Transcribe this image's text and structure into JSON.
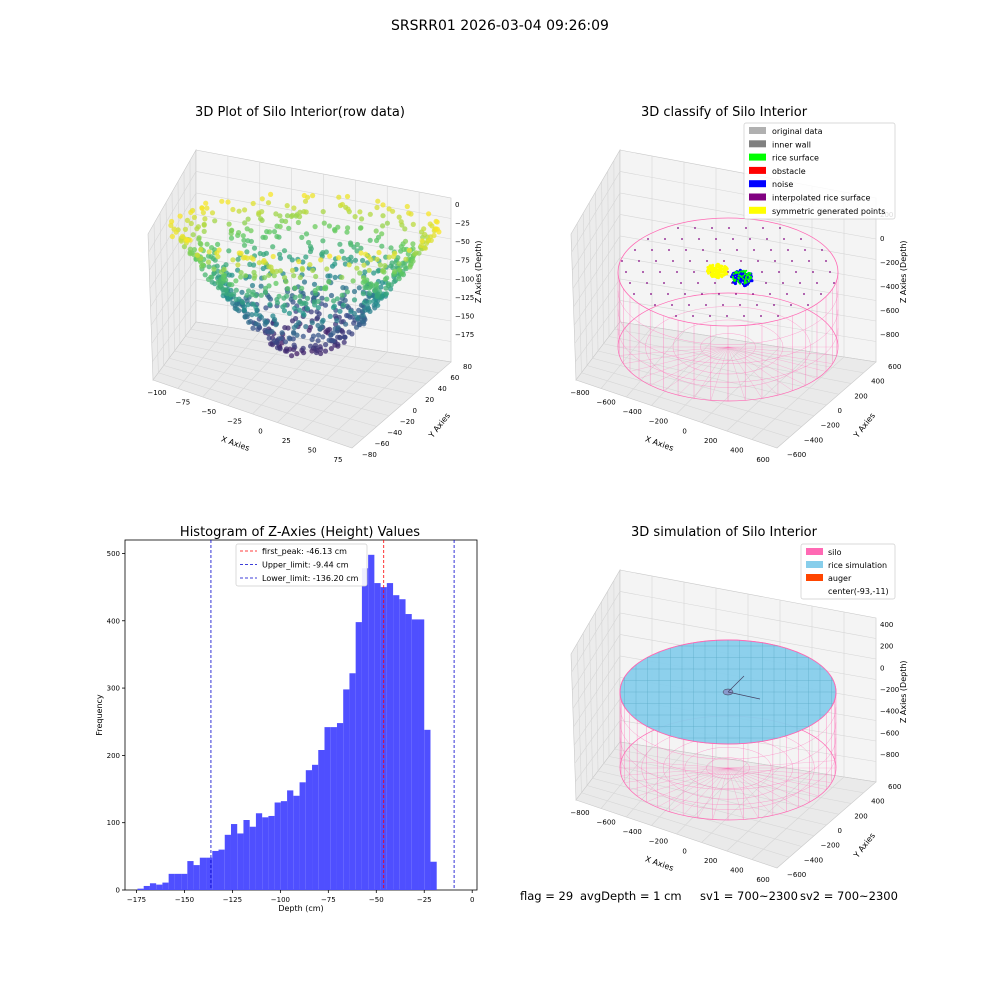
{
  "figure": {
    "title": "SRSRR01 2026-03-04 09:26:09",
    "status": {
      "flag": "flag = 29",
      "avg_depth": "avgDepth = 1 cm",
      "sv1": "sv1 = 700~2300",
      "sv2": "sv2 = 700~2300"
    }
  },
  "colors": {
    "bar": "#4b4bff",
    "peak_line": "#ff0000",
    "limit_line": "#0000cc",
    "silo": "#ff69b4",
    "rice_sim": "#87ceeb",
    "auger": "#ff4500",
    "original": "#b0b0b0",
    "inner_wall": "#808080",
    "rice_surface": "#00ff00",
    "obstacle": "#ff0000",
    "noise": "#0000ff",
    "interpolated": "#800080",
    "symmetric": "#ffff00"
  },
  "chart_data": [
    {
      "type": "scatter",
      "is_3d": true,
      "title": "3D Plot of Silo Interior(row data)",
      "xlabel": "X Axies",
      "ylabel": "Y Axies",
      "zlabel": "Z Axies (Depth)",
      "xlim": [
        -100,
        90
      ],
      "ylim": [
        -80,
        85
      ],
      "zlim": [
        -185,
        5
      ],
      "x_ticks": [
        "−100",
        "−75",
        "−50",
        "−25",
        "0",
        "25",
        "50",
        "75"
      ],
      "y_ticks": [
        "−80",
        "−60",
        "−40",
        "−20",
        "0",
        "20",
        "40",
        "60",
        "80"
      ],
      "z_ticks": [
        "0",
        "−25",
        "−50",
        "−75",
        "−100",
        "−125",
        "−150",
        "−175"
      ],
      "colormap": "viridis",
      "surface": "cone-shaped rice surface; rim at about -20 to -60 cm, lowest point about -180 cm near center"
    },
    {
      "type": "scatter",
      "is_3d": true,
      "title": "3D classify of Silo Interior",
      "xlabel": "X Axies",
      "ylabel": "Y Axies",
      "zlabel": "Z Axies (Depth)",
      "x_ticks": [
        "−800",
        "−600",
        "−400",
        "−200",
        "0",
        "200",
        "400",
        "600"
      ],
      "y_ticks": [
        "−600",
        "−400",
        "−200",
        "0",
        "200",
        "400",
        "600"
      ],
      "z_ticks": [
        "200",
        "0",
        "−200",
        "−400",
        "−600",
        "−800"
      ],
      "legend": [
        {
          "label": "original data",
          "color": "#b0b0b0"
        },
        {
          "label": "inner wall",
          "color": "#808080"
        },
        {
          "label": "rice surface",
          "color": "#00ff00"
        },
        {
          "label": "obstacle",
          "color": "#ff0000"
        },
        {
          "label": "noise",
          "color": "#0000ff"
        },
        {
          "label": "interpolated rice surface",
          "color": "#800080"
        },
        {
          "label": "symmetric generated points",
          "color": "#ffff00"
        }
      ],
      "legend_loc": "upper right"
    },
    {
      "type": "bar",
      "title": "Histogram of Z-Axies (Height) Values",
      "xlabel": "Depth (cm)",
      "ylabel": "Frequency",
      "xlim": [
        -181,
        2.5
      ],
      "ylim": [
        0,
        520
      ],
      "x_ticks": [
        -175,
        -150,
        -125,
        -100,
        -75,
        -50,
        -25,
        0
      ],
      "x_tick_labels": [
        "−175",
        "−150",
        "−125",
        "−100",
        "−75",
        "−50",
        "−25",
        "0"
      ],
      "y_ticks": [
        0,
        100,
        200,
        300,
        400,
        500
      ],
      "y_tick_labels": [
        "0",
        "100",
        "200",
        "300",
        "400",
        "500"
      ],
      "bin_start": -174.5,
      "bin_width": 3.25,
      "values": [
        2,
        6,
        10,
        8,
        11,
        24,
        24,
        24,
        43,
        37,
        48,
        48,
        58,
        60,
        82,
        98,
        84,
        104,
        94,
        114,
        108,
        110,
        130,
        132,
        148,
        140,
        160,
        178,
        186,
        208,
        242,
        242,
        248,
        298,
        322,
        398,
        478,
        498,
        456,
        450,
        456,
        438,
        432,
        410,
        402,
        402,
        238,
        42
      ],
      "vlines": [
        {
          "x": -46.13,
          "label": "first_peak: -46.13 cm",
          "color": "#ff0000"
        },
        {
          "x": -9.44,
          "label": "Upper_limit: -9.44 cm",
          "color": "#0000cc"
        },
        {
          "x": -136.2,
          "label": "Lower_limit: -136.20 cm",
          "color": "#0000cc"
        }
      ],
      "legend_loc": "upper center"
    },
    {
      "type": "scatter",
      "is_3d": true,
      "title": "3D simulation of Silo Interior",
      "xlabel": "X Axies",
      "ylabel": "Y Axies",
      "zlabel": "Z Axies (Depth)",
      "x_ticks": [
        "−800",
        "−600",
        "−400",
        "−200",
        "0",
        "200",
        "400",
        "600"
      ],
      "y_ticks": [
        "−600",
        "−400",
        "−200",
        "0",
        "200",
        "400",
        "600"
      ],
      "z_ticks": [
        "400",
        "200",
        "0",
        "−200",
        "−400",
        "−600",
        "−800"
      ],
      "legend": [
        {
          "label": "silo",
          "color": "#ff69b4"
        },
        {
          "label": "rice simulation",
          "color": "#87ceeb"
        },
        {
          "label": "auger",
          "color": "#ff4500"
        },
        {
          "label": "center(-93,-11)",
          "color": ""
        }
      ],
      "legend_loc": "upper right"
    }
  ]
}
